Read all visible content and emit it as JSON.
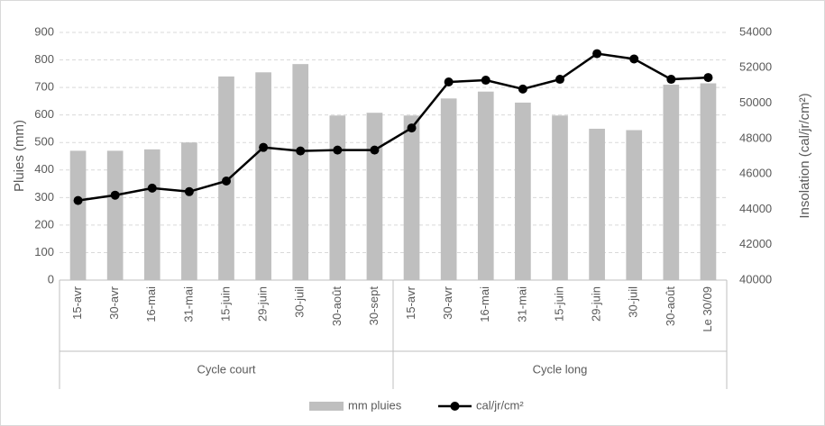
{
  "chart_data": {
    "type": "bar",
    "categories": [
      "15-avr",
      "30-avr",
      "16-mai",
      "31-mai",
      "15-juin",
      "29-juin",
      "30-juil",
      "30-août",
      "30-sept",
      "15-avr",
      "30-avr",
      "16-mai",
      "31-mai",
      "15-juin",
      "29-juin",
      "30-juil",
      "30-août",
      "Le 30/09"
    ],
    "groups": [
      {
        "label": "Cycle court",
        "span": 9
      },
      {
        "label": "Cycle long",
        "span": 9
      }
    ],
    "series": [
      {
        "name": "mm pluies",
        "color": "#bfbfbf",
        "values": [
          470,
          470,
          475,
          500,
          740,
          755,
          785,
          598,
          608,
          598,
          660,
          685,
          645,
          598,
          550,
          545,
          710,
          715
        ]
      },
      {
        "name": "cal/jr/cm²",
        "color": "#000000",
        "type": "line",
        "axis": "y2",
        "values": [
          44500,
          44800,
          45200,
          45000,
          45600,
          47500,
          47300,
          47350,
          47350,
          48600,
          51200,
          51300,
          50800,
          51350,
          52800,
          52500,
          51350,
          51450
        ]
      }
    ],
    "ylabel": "Pluies (mm)",
    "y2label": "Insolation (cal/jr/cm²)",
    "ylim": [
      0,
      900
    ],
    "yticks": [
      0,
      100,
      200,
      300,
      400,
      500,
      600,
      700,
      800,
      900
    ],
    "y2lim": [
      40000,
      54000
    ],
    "y2ticks": [
      40000,
      42000,
      44000,
      46000,
      48000,
      50000,
      52000,
      54000
    ],
    "grid": true,
    "legend": "bottom"
  }
}
